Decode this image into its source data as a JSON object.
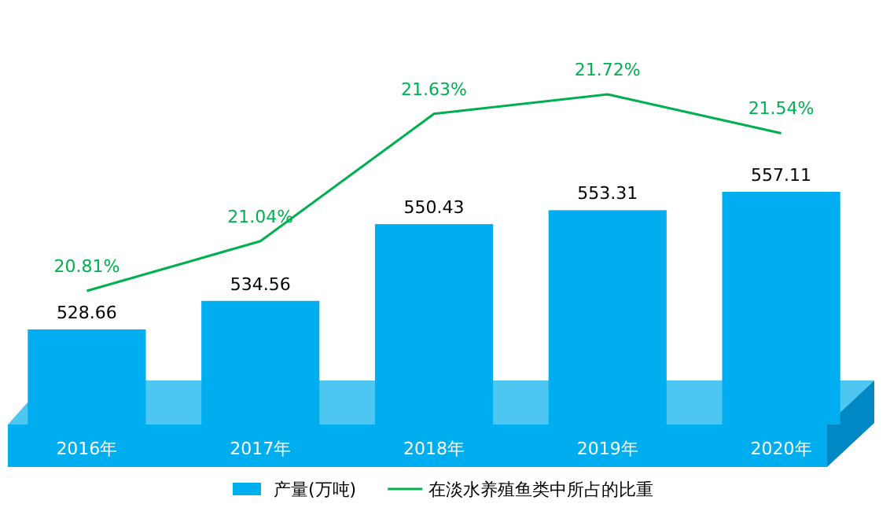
{
  "chart_data": {
    "type": "bar",
    "categories": [
      "2016年",
      "2017年",
      "2018年",
      "2019年",
      "2020年"
    ],
    "ylim": [
      509,
      557.11
    ],
    "tick_labels": "x",
    "data_labels": true,
    "legend": "bottom",
    "series": [
      {
        "name": "产量(万吨)",
        "color": "#00aeef",
        "values": [
          528.66,
          534.56,
          550.43,
          553.31,
          557.11
        ]
      },
      {
        "name": "在淡水养殖鱼类中所占的比重",
        "type": "line",
        "axis": "y2",
        "color": "#00b050",
        "values": [
          20.81,
          21.04,
          21.63,
          21.72,
          21.54
        ],
        "value_labels": [
          "20.81%",
          "21.04%",
          "21.63%",
          "21.72%",
          "21.54%"
        ]
      }
    ]
  }
}
